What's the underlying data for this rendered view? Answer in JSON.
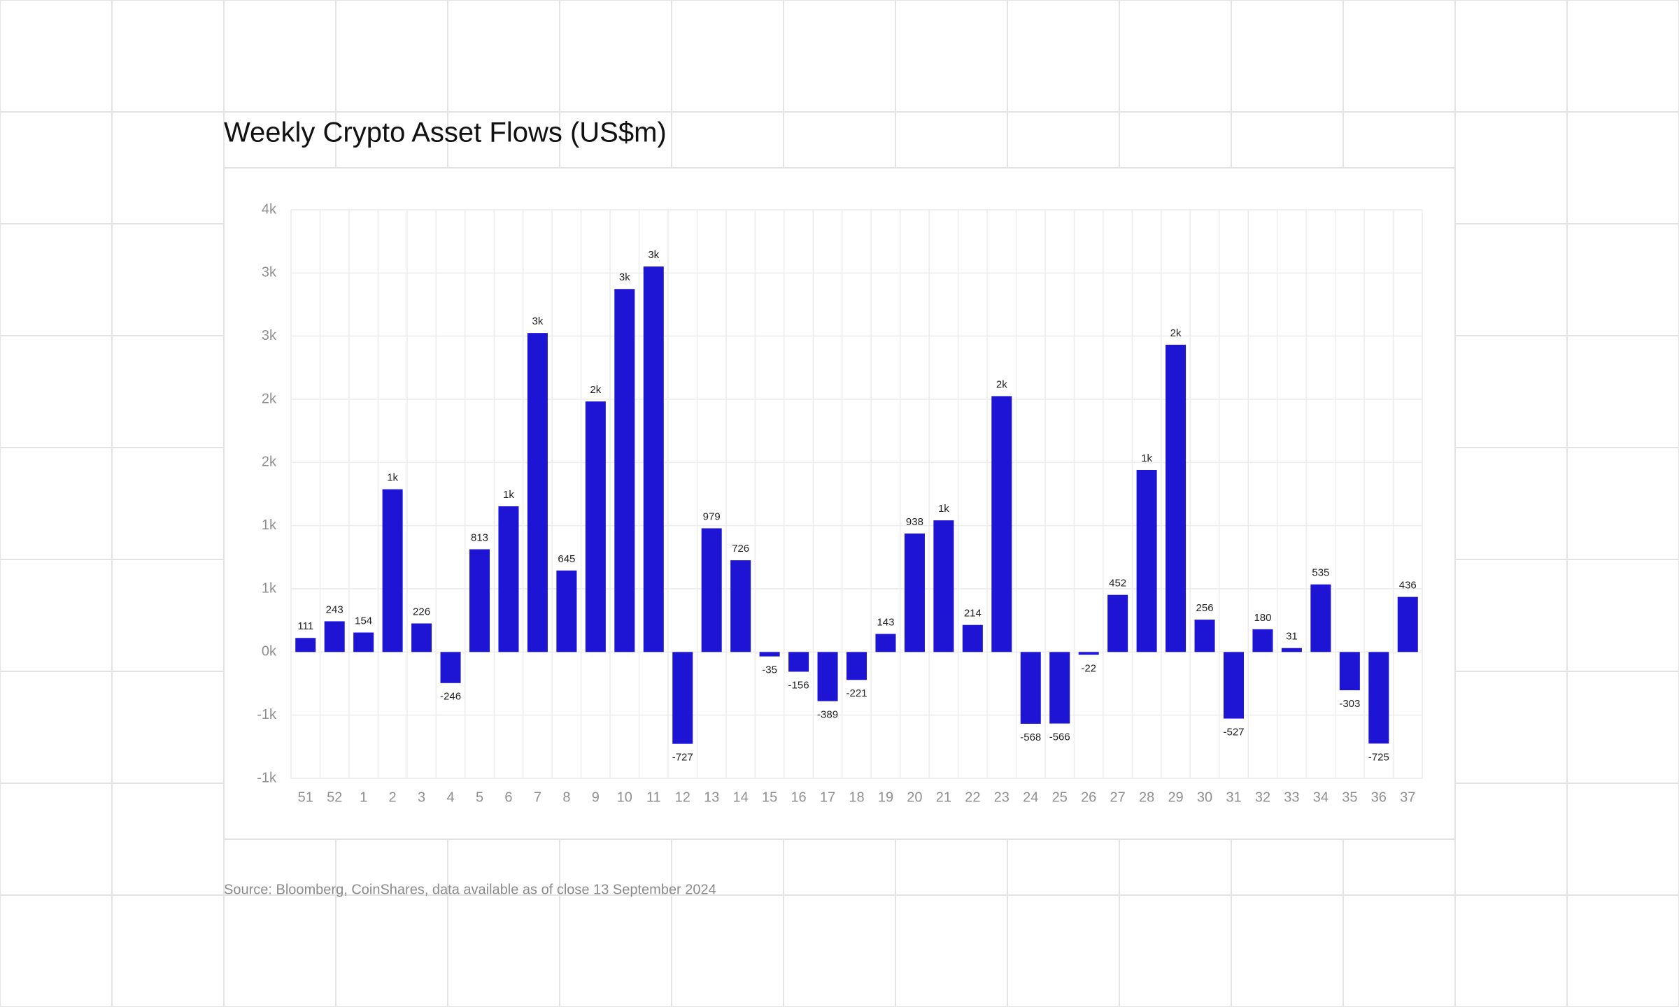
{
  "chart_data": {
    "type": "bar",
    "title": "Weekly Crypto Asset Flows (US$m)",
    "source": "Source: Bloomberg, CoinShares, data available as of close 13 September 2024",
    "categories": [
      "51",
      "52",
      "1",
      "2",
      "3",
      "4",
      "5",
      "6",
      "7",
      "8",
      "9",
      "10",
      "11",
      "12",
      "13",
      "14",
      "15",
      "16",
      "17",
      "18",
      "19",
      "20",
      "21",
      "22",
      "23",
      "24",
      "25",
      "26",
      "27",
      "28",
      "29",
      "30",
      "31",
      "32",
      "33",
      "34",
      "35",
      "36",
      "37"
    ],
    "values": [
      111,
      243,
      154,
      1288,
      226,
      -246,
      813,
      1153,
      2525,
      645,
      1983,
      2873,
      3051,
      -727,
      979,
      726,
      -35,
      -156,
      -389,
      -221,
      143,
      938,
      1042,
      214,
      2025,
      -568,
      -566,
      -22,
      452,
      1441,
      2432,
      256,
      -527,
      180,
      31,
      535,
      -303,
      -725,
      436
    ],
    "value_labels": [
      "111",
      "243",
      "154",
      "1k",
      "226",
      "-246",
      "813",
      "1k",
      "3k",
      "645",
      "2k",
      "3k",
      "3k",
      "-727",
      "979",
      "726",
      "-35",
      "-156",
      "-389",
      "-221",
      "143",
      "938",
      "1k",
      "214",
      "2k",
      "-568",
      "-566",
      "-22",
      "452",
      "1k",
      "2k",
      "256",
      "-527",
      "180",
      "31",
      "535",
      "-303",
      "-725",
      "436"
    ],
    "color": "#1e14d4",
    "ylim": [
      -1000,
      3500
    ],
    "yticks": [
      {
        "value": -1000,
        "label": "-1k"
      },
      {
        "value": -500,
        "label": "-1k"
      },
      {
        "value": 0,
        "label": "0k"
      },
      {
        "value": 500,
        "label": "1k"
      },
      {
        "value": 1000,
        "label": "1k"
      },
      {
        "value": 1500,
        "label": "2k"
      },
      {
        "value": 2000,
        "label": "2k"
      },
      {
        "value": 2500,
        "label": "3k"
      },
      {
        "value": 3000,
        "label": "3k"
      },
      {
        "value": 3500,
        "label": "4k"
      }
    ],
    "grid": true
  }
}
